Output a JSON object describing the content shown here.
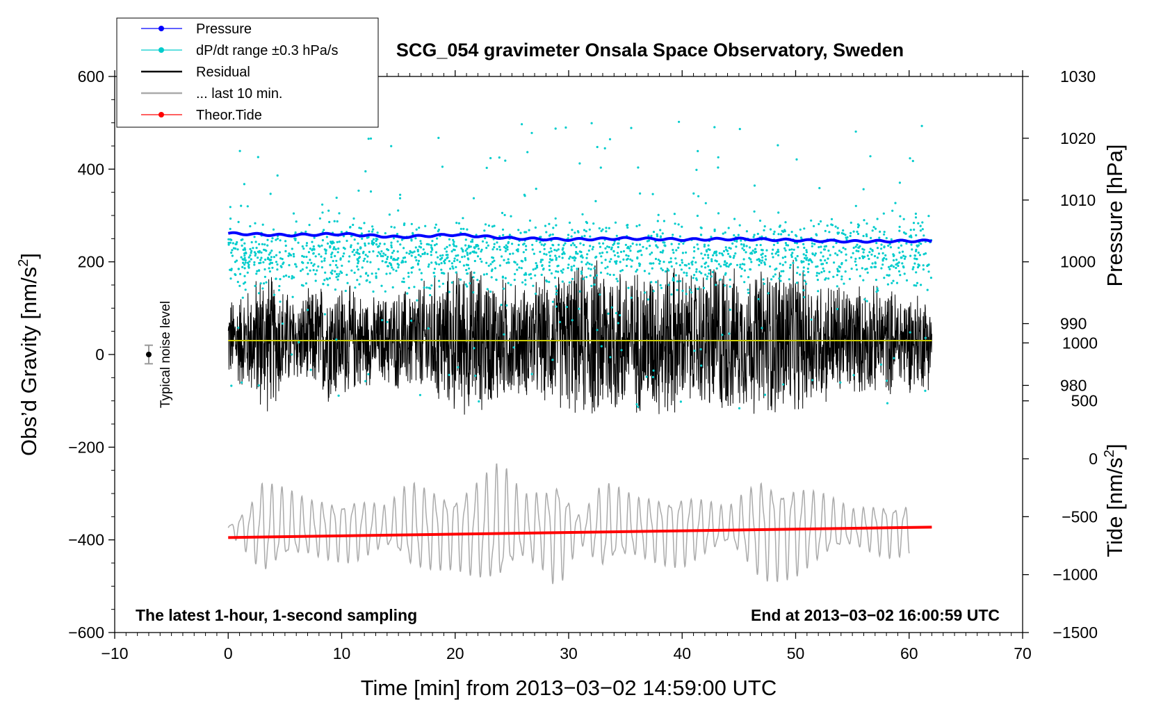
{
  "chart_data": {
    "type": "line",
    "title": "SCG_054 gravimeter Onsala Space Observatory, Sweden",
    "xlabel": "Time [min] from 2013−03−02 14:59:00 UTC",
    "ylabel_left": "Obs’d Gravity [nm/s²]",
    "ylabel_left_base": "Obs’d Gravity [nm/s",
    "ylabel_left_sup": "2",
    "ylabel_left_end": "]",
    "ylabel_right_pressure": "Pressure [hPa]",
    "ylabel_right_tide": "Tide [nm/s²]",
    "ylabel_right_tide_base": "Tide [nm/s",
    "ylabel_right_tide_sup": "2",
    "ylabel_right_tide_end": "]",
    "xlim": [
      -10,
      70
    ],
    "ylim_left": [
      -600,
      600
    ],
    "ylim_pressure": [
      940,
      1030
    ],
    "ylim_tide": [
      -1500,
      3300
    ],
    "x_ticks": [
      "−10",
      "0",
      "10",
      "20",
      "30",
      "40",
      "50",
      "60",
      "70"
    ],
    "y_left_ticks": [
      "−600",
      "−400",
      "−200",
      "0",
      "200",
      "400",
      "600"
    ],
    "pressure_ticks": [
      "980",
      "990",
      "1000",
      "1010",
      "1020",
      "1030"
    ],
    "tide_ticks": [
      "−1500",
      "−1000",
      "−500",
      "0",
      "500",
      "1000"
    ],
    "footer_left": "The latest 1-hour, 1-second sampling",
    "footer_right": "End at 2013−03−02 16:00:59 UTC",
    "noise_annotation": "Typical noise level",
    "noise_marker": {
      "x": -7,
      "y": 0,
      "err": 20
    },
    "legend": [
      {
        "label": "Pressure",
        "color": "#0000ff",
        "style": "line-dot"
      },
      {
        "label": "dP/dt range ±0.3 hPa/s",
        "color": "#00cccc",
        "style": "line-dot"
      },
      {
        "label": "Residual",
        "color": "#000000",
        "style": "line"
      },
      {
        "label": "... last 10 min.",
        "color": "#aaaaaa",
        "style": "line"
      },
      {
        "label": "Theor.Tide",
        "color": "#ff0000",
        "style": "line-dot"
      }
    ],
    "series": [
      {
        "name": "Pressure",
        "axis": "pressure",
        "color": "#0000ff",
        "x": [
          0,
          5,
          10,
          15,
          20,
          25,
          30,
          35,
          40,
          45,
          50,
          55,
          62
        ],
        "y": [
          1004.6,
          1004.3,
          1004.5,
          1004.0,
          1004.4,
          1003.8,
          1003.6,
          1003.8,
          1003.6,
          1003.7,
          1003.5,
          1003.3,
          1003.4
        ]
      },
      {
        "name": "dP/dt range ±0.3 hPa/s",
        "axis": "pressure",
        "color": "#00cccc",
        "x_range": [
          0,
          62
        ],
        "center": 1001.2,
        "spread": 5,
        "outlier_range": [
          976,
          1023
        ]
      },
      {
        "name": "Residual",
        "axis": "left",
        "color": "#000000",
        "x": [
          0,
          2,
          3,
          6,
          9,
          13,
          16,
          21,
          26,
          29,
          32,
          33,
          36,
          39,
          41,
          43,
          45,
          49,
          52,
          56,
          60,
          62
        ],
        "envelope": [
          100,
          130,
          180,
          100,
          150,
          100,
          130,
          180,
          130,
          160,
          190,
          200,
          170,
          190,
          150,
          200,
          160,
          190,
          150,
          130,
          120,
          110
        ]
      },
      {
        "name": "Residual mean",
        "axis": "left",
        "color": "#cccc00",
        "x": [
          0,
          62
        ],
        "y": [
          30,
          30
        ]
      },
      {
        "name": "... last 10 min.",
        "axis": "left",
        "color": "#aaaaaa",
        "x_range": [
          0,
          60
        ],
        "baseline": -375,
        "x": [
          0,
          2,
          3,
          7,
          11,
          14,
          16,
          20,
          24,
          26,
          28,
          29,
          31,
          33,
          36,
          40,
          44,
          47,
          50,
          55,
          58,
          60
        ],
        "amplitude": [
          5,
          60,
          100,
          60,
          70,
          45,
          95,
          80,
          135,
          70,
          90,
          125,
          30,
          95,
          65,
          80,
          40,
          110,
          100,
          40,
          60,
          55
        ]
      },
      {
        "name": "Theor.Tide",
        "axis": "tide",
        "color": "#ff0000",
        "x": [
          0,
          62
        ],
        "y": [
          -680,
          -590
        ]
      }
    ]
  }
}
